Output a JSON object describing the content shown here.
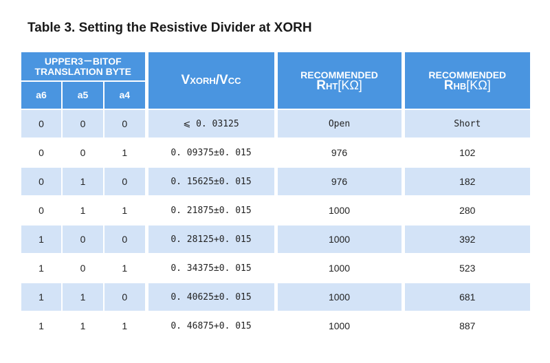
{
  "title": "Table 3. Setting the Resistive Divider at XORH",
  "table": {
    "header": {
      "group": [
        "UPPER3－BITOF",
        "TRANSLATION BYTE"
      ],
      "bits": [
        "a6",
        "a5",
        "a4"
      ],
      "ratio": [
        "V",
        "XORH",
        "/V",
        "CC"
      ],
      "rht": [
        "RECOMMENDED",
        "R",
        "HT",
        "[KΩ]"
      ],
      "rhb": [
        "RECOMMENDED",
        "R",
        "HB",
        "[KΩ]"
      ]
    },
    "rows": [
      [
        "0",
        "0",
        "0",
        "⩽ 0. 03125",
        "Open",
        "Short"
      ],
      [
        "0",
        "0",
        "1",
        "0. 09375±0. 015",
        "976",
        "102"
      ],
      [
        "0",
        "1",
        "0",
        "0. 15625±0. 015",
        "976",
        "182"
      ],
      [
        "0",
        "1",
        "1",
        "0. 21875±0. 015",
        "1000",
        "280"
      ],
      [
        "1",
        "0",
        "0",
        "0. 28125+0. 015",
        "1000",
        "392"
      ],
      [
        "1",
        "0",
        "1",
        "0. 34375±0. 015",
        "1000",
        "523"
      ],
      [
        "1",
        "1",
        "0",
        "0. 40625±0. 015",
        "1000",
        "681"
      ],
      [
        "1",
        "1",
        "1",
        "0. 46875+0. 015",
        "1000",
        "887"
      ]
    ]
  }
}
